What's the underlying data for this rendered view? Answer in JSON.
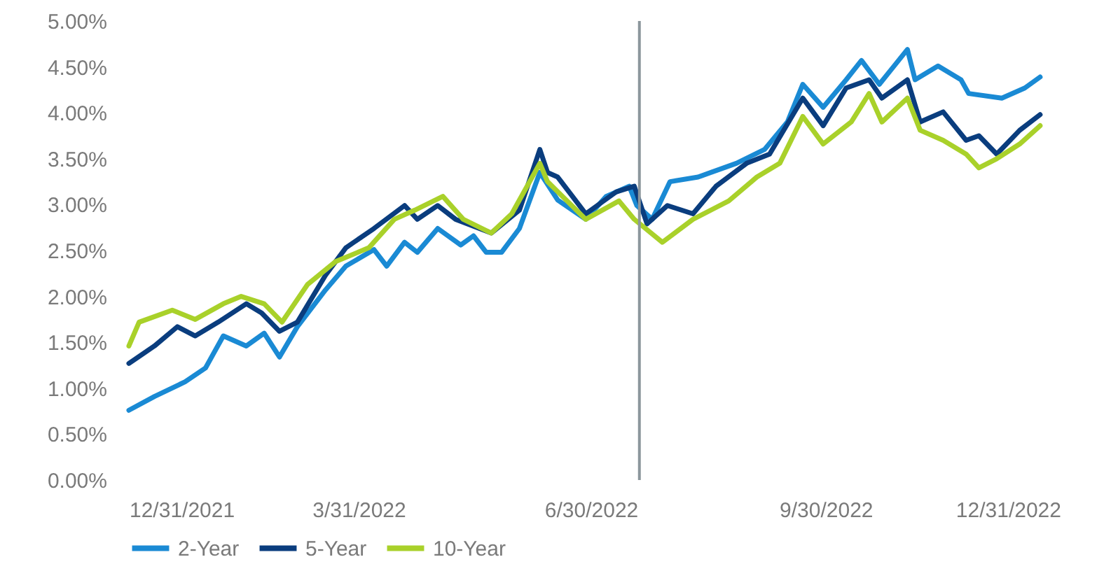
{
  "chart_data": {
    "type": "line",
    "xlim": [
      "2021-12-31",
      "2022-12-31"
    ],
    "xticks": [
      {
        "value": "2021-12-31",
        "label": "12/31/2021"
      },
      {
        "value": "2022-03-31",
        "label": "3/31/2022"
      },
      {
        "value": "2022-06-30",
        "label": "6/30/2022"
      },
      {
        "value": "2022-09-30",
        "label": "9/30/2022"
      },
      {
        "value": "2022-12-31",
        "label": "12/31/2022"
      }
    ],
    "ylim": [
      0,
      5
    ],
    "yticks": [
      {
        "value": 0,
        "label": "0.00%"
      },
      {
        "value": 0.5,
        "label": "0.50%"
      },
      {
        "value": 1,
        "label": "1.00%"
      },
      {
        "value": 1.5,
        "label": "1.50%"
      },
      {
        "value": 2,
        "label": "2.00%"
      },
      {
        "value": 2.5,
        "label": "2.50%"
      },
      {
        "value": 3,
        "label": "3.00%"
      },
      {
        "value": 3.5,
        "label": "3.50%"
      },
      {
        "value": 4,
        "label": "4.00%"
      },
      {
        "value": 4.5,
        "label": "4.50%"
      },
      {
        "value": 5,
        "label": "5.00%"
      }
    ],
    "grid": false,
    "legend": "bottom",
    "marker": "none",
    "line_style": "solid",
    "ref_lines": [
      {
        "axis": "x",
        "value": "2022-07-19",
        "color": "#8c979c"
      }
    ],
    "series": [
      {
        "name": "2-Year",
        "color": "#1a8ad4",
        "x": [
          "2021-12-31",
          "2022-01-10",
          "2022-01-22",
          "2022-01-30",
          "2022-02-06",
          "2022-02-15",
          "2022-02-22",
          "2022-02-28",
          "2022-03-07",
          "2022-03-18",
          "2022-03-26",
          "2022-04-06",
          "2022-04-11",
          "2022-04-18",
          "2022-04-23",
          "2022-05-01",
          "2022-05-10",
          "2022-05-15",
          "2022-05-20",
          "2022-05-26",
          "2022-06-02",
          "2022-06-10",
          "2022-06-17",
          "2022-06-28",
          "2022-07-06",
          "2022-07-15",
          "2022-07-18",
          "2022-07-24",
          "2022-07-31",
          "2022-08-11",
          "2022-08-26",
          "2022-09-06",
          "2022-09-15",
          "2022-09-21",
          "2022-09-29",
          "2022-10-08",
          "2022-10-14",
          "2022-10-21",
          "2022-11-01",
          "2022-11-04",
          "2022-11-13",
          "2022-11-22",
          "2022-11-25",
          "2022-12-08",
          "2022-12-17",
          "2022-12-23"
        ],
        "values": [
          0.76,
          0.91,
          1.07,
          1.22,
          1.57,
          1.46,
          1.6,
          1.34,
          1.67,
          2.07,
          2.33,
          2.51,
          2.33,
          2.59,
          2.48,
          2.74,
          2.56,
          2.66,
          2.48,
          2.48,
          2.74,
          3.35,
          3.05,
          2.84,
          3.09,
          3.2,
          2.99,
          2.84,
          3.25,
          3.3,
          3.45,
          3.6,
          3.9,
          4.31,
          4.06,
          4.36,
          4.57,
          4.31,
          4.69,
          4.36,
          4.51,
          4.36,
          4.21,
          4.16,
          4.27,
          4.39
        ]
      },
      {
        "name": "5-Year",
        "color": "#0a3d7e",
        "x": [
          "2021-12-31",
          "2022-01-10",
          "2022-01-19",
          "2022-01-26",
          "2022-02-04",
          "2022-02-15",
          "2022-02-21",
          "2022-02-28",
          "2022-03-07",
          "2022-03-18",
          "2022-03-26",
          "2022-04-06",
          "2022-04-18",
          "2022-04-23",
          "2022-05-01",
          "2022-05-08",
          "2022-05-22",
          "2022-06-02",
          "2022-06-10",
          "2022-06-13",
          "2022-06-17",
          "2022-06-28",
          "2022-07-10",
          "2022-07-17",
          "2022-07-22",
          "2022-07-30",
          "2022-08-09",
          "2022-08-18",
          "2022-08-30",
          "2022-09-08",
          "2022-09-21",
          "2022-09-29",
          "2022-10-08",
          "2022-10-17",
          "2022-10-22",
          "2022-11-01",
          "2022-11-06",
          "2022-11-15",
          "2022-11-24",
          "2022-11-29",
          "2022-12-06",
          "2022-12-15",
          "2022-12-23"
        ],
        "values": [
          1.27,
          1.46,
          1.67,
          1.57,
          1.72,
          1.92,
          1.82,
          1.62,
          1.72,
          2.23,
          2.53,
          2.74,
          2.99,
          2.84,
          2.99,
          2.84,
          2.69,
          2.94,
          3.6,
          3.35,
          3.3,
          2.9,
          3.14,
          3.2,
          2.79,
          2.99,
          2.9,
          3.2,
          3.45,
          3.55,
          4.16,
          3.86,
          4.27,
          4.36,
          4.16,
          4.36,
          3.9,
          4.01,
          3.7,
          3.75,
          3.55,
          3.81,
          3.98
        ]
      },
      {
        "name": "10-Year",
        "color": "#a9d12a",
        "x": [
          "2021-12-31",
          "2022-01-04",
          "2022-01-17",
          "2022-01-26",
          "2022-02-06",
          "2022-02-13",
          "2022-02-22",
          "2022-03-01",
          "2022-03-11",
          "2022-03-22",
          "2022-04-04",
          "2022-04-14",
          "2022-04-22",
          "2022-05-03",
          "2022-05-11",
          "2022-05-22",
          "2022-05-30",
          "2022-06-10",
          "2022-06-13",
          "2022-06-17",
          "2022-06-28",
          "2022-07-11",
          "2022-07-17",
          "2022-07-28",
          "2022-08-09",
          "2022-08-23",
          "2022-09-03",
          "2022-09-12",
          "2022-09-21",
          "2022-09-29",
          "2022-10-10",
          "2022-10-17",
          "2022-10-22",
          "2022-11-01",
          "2022-11-06",
          "2022-11-15",
          "2022-11-24",
          "2022-11-29",
          "2022-12-06",
          "2022-12-15",
          "2022-12-23"
        ],
        "values": [
          1.46,
          1.72,
          1.85,
          1.75,
          1.92,
          2.0,
          1.92,
          1.72,
          2.13,
          2.38,
          2.53,
          2.84,
          2.94,
          3.09,
          2.84,
          2.69,
          2.9,
          3.45,
          3.25,
          3.14,
          2.84,
          3.04,
          2.84,
          2.59,
          2.84,
          3.04,
          3.3,
          3.45,
          3.96,
          3.66,
          3.9,
          4.21,
          3.9,
          4.16,
          3.81,
          3.7,
          3.55,
          3.4,
          3.5,
          3.66,
          3.86
        ]
      }
    ]
  }
}
